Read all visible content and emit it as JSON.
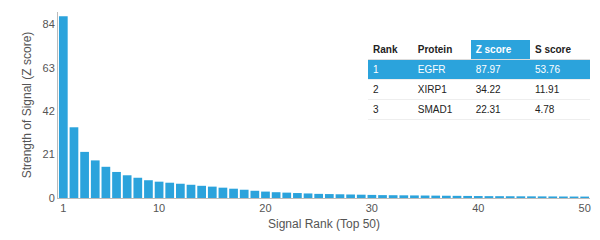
{
  "chart_data": {
    "type": "bar",
    "x_label": "Signal Rank (Top 50)",
    "y_label": "Strength of Signal (Z score)",
    "x": [
      1,
      2,
      3,
      4,
      5,
      6,
      7,
      8,
      9,
      10,
      11,
      12,
      13,
      14,
      15,
      16,
      17,
      18,
      19,
      20,
      21,
      22,
      23,
      24,
      25,
      26,
      27,
      28,
      29,
      30,
      31,
      32,
      33,
      34,
      35,
      36,
      37,
      38,
      39,
      40,
      41,
      42,
      43,
      44,
      45,
      46,
      47,
      48,
      49,
      50
    ],
    "values": [
      87.97,
      34.22,
      22.31,
      18.2,
      15.1,
      12.6,
      11.0,
      9.8,
      8.6,
      7.9,
      7.4,
      6.9,
      6.4,
      5.9,
      5.5,
      5.0,
      4.5,
      4.0,
      3.5,
      3.1,
      2.8,
      2.6,
      2.4,
      2.2,
      2.0,
      1.9,
      1.8,
      1.7,
      1.6,
      1.5,
      1.4,
      1.35,
      1.3,
      1.25,
      1.2,
      1.15,
      1.1,
      1.05,
      1.0,
      0.95,
      0.9,
      0.88,
      0.85,
      0.82,
      0.8,
      0.78,
      0.75,
      0.72,
      0.7,
      0.68
    ],
    "color": "#2ba3dc",
    "xlim": [
      0.5,
      50.5
    ],
    "xticks": [
      1,
      10,
      20,
      30,
      40,
      50
    ],
    "ylim": [
      0,
      90
    ],
    "yticks": [
      0,
      21,
      42,
      63,
      84
    ],
    "grid": false
  },
  "table": {
    "columns": [
      "Rank",
      "Protein",
      "Z score",
      "S score"
    ],
    "rows": [
      [
        1,
        "EGFR",
        87.97,
        53.76
      ],
      [
        2,
        "XIRP1",
        34.22,
        11.91
      ],
      [
        3,
        "SMAD1",
        22.31,
        4.78
      ]
    ]
  }
}
